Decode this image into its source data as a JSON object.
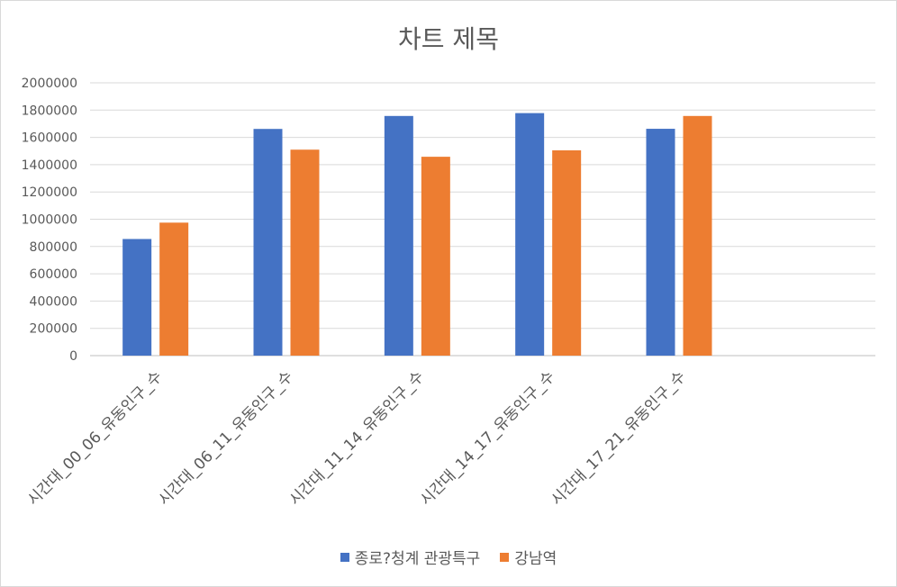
{
  "chart_data": {
    "type": "bar",
    "title": "차트 제목",
    "categories": [
      "시간대_00_06_유동인구_수",
      "시간대_06_11_유동인구_수",
      "시간대_11_14_유동인구_수",
      "시간대_14_17_유동인구_수",
      "시간대_17_21_유동인구_수"
    ],
    "series": [
      {
        "name": "종로?청계 관광특구",
        "color": "#4472C4",
        "values": [
          855000,
          1662000,
          1757000,
          1778000,
          1663000
        ]
      },
      {
        "name": "강남역",
        "color": "#ED7D31",
        "values": [
          975000,
          1510000,
          1458000,
          1505000,
          1757000
        ]
      }
    ],
    "xlabel": "",
    "ylabel": "",
    "ylim": [
      0,
      2000000
    ],
    "yticks": [
      "0",
      "200000",
      "400000",
      "600000",
      "800000",
      "1000000",
      "1200000",
      "1400000",
      "1600000",
      "1800000",
      "2000000"
    ],
    "grid": true,
    "legend_position": "bottom"
  }
}
